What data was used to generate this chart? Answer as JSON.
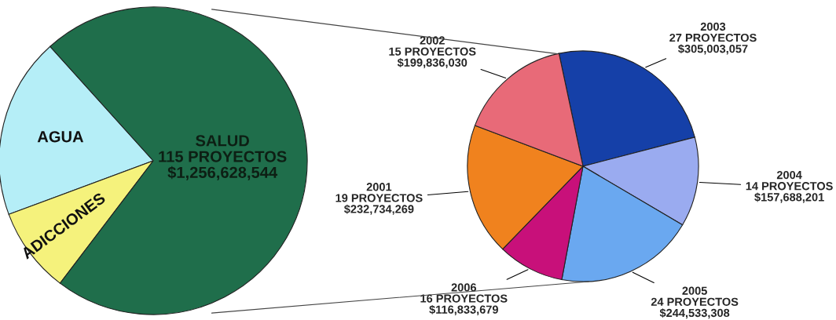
{
  "chart_data": [
    {
      "type": "pie",
      "categories": [
        "AGUA",
        "ADICCIONES",
        "SALUD\n115 PROYECTOS\n$1,256,628,544"
      ],
      "values": [
        19,
        9,
        72
      ],
      "colors": [
        "#b5eef7",
        "#f5f27c",
        "#1f6e4b"
      ]
    },
    {
      "type": "pie",
      "categories": [
        "2003\n27 PROYECTOS",
        "2004\n14 PROYECTOS",
        "2005\n24 PROYECTOS",
        "2006\n16 PROYECTOS",
        "2001\n19 PROYECTOS",
        "2002\n15 PROYECTOS"
      ],
      "values": [
        305003057,
        157688201,
        244533308,
        116833679,
        232734269,
        199836030
      ],
      "value_labels": [
        "$305,003,057",
        "$157,688,201",
        "$244,533,308",
        "$116,833,679",
        "$232,734,269",
        "$199,836,030"
      ],
      "colors": [
        "#1540a8",
        "#9aabf0",
        "#6aa8f0",
        "#c8107a",
        "#f0821e",
        "#e86a78"
      ]
    }
  ]
}
